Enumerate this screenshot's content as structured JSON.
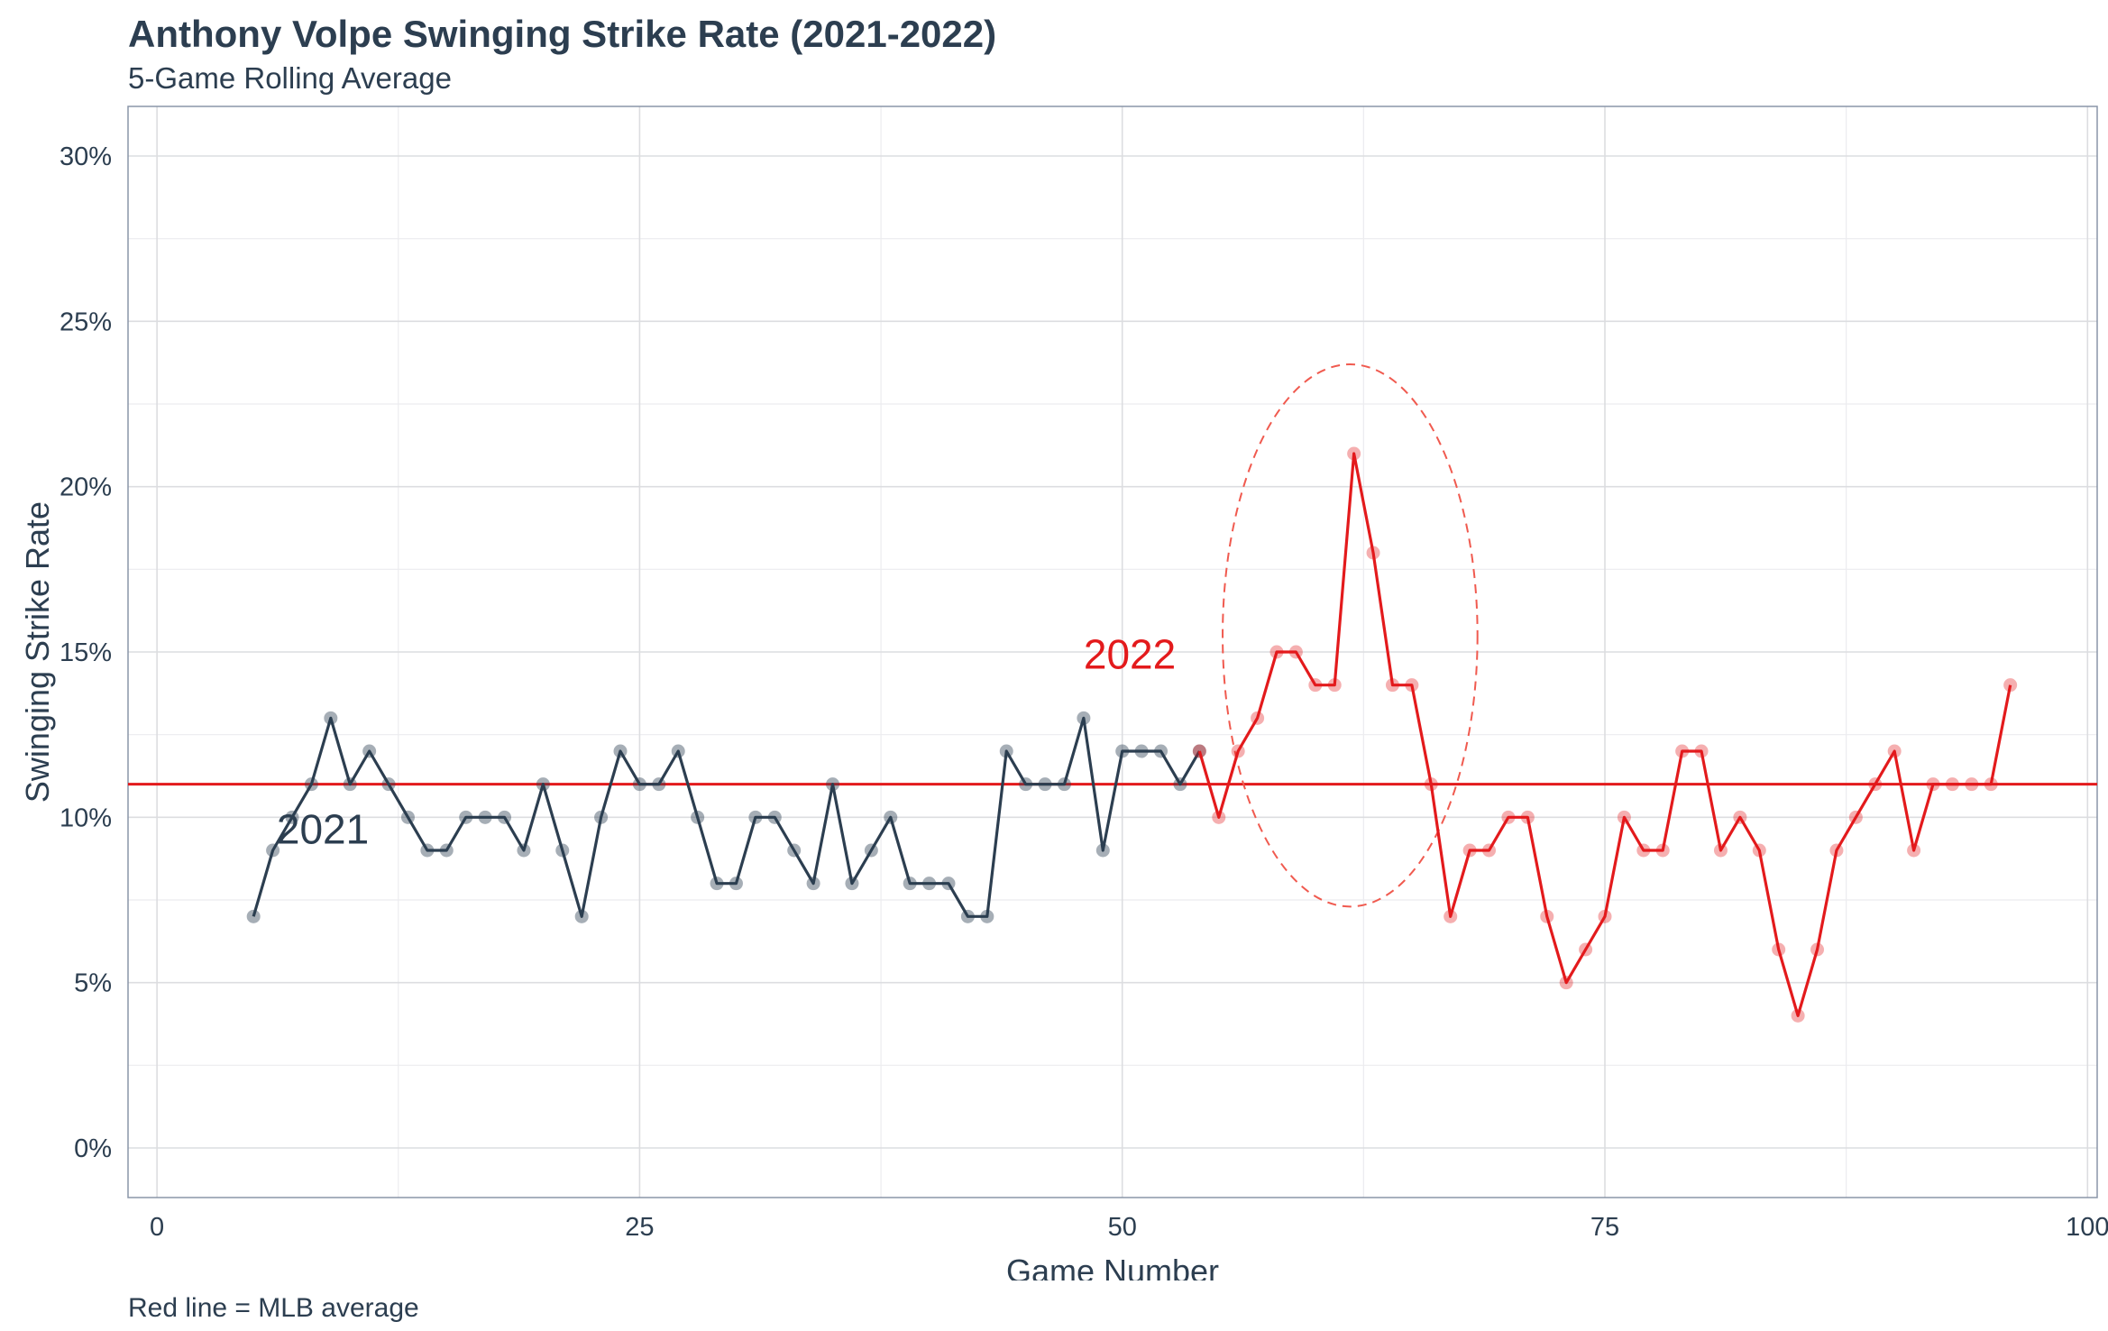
{
  "title": "Anthony Volpe Swinging Strike Rate (2021-2022)",
  "subtitle": "5-Game Rolling Average",
  "caption": "Red line = MLB average",
  "chart_data": {
    "type": "line",
    "xlabel": "Game Number",
    "ylabel": "Swinging Strike Rate",
    "xlim": [
      -1.5,
      100.5
    ],
    "ylim": [
      -1.5,
      31.5
    ],
    "x_ticks": [
      {
        "value": 0,
        "label": "0"
      },
      {
        "value": 25,
        "label": "25"
      },
      {
        "value": 50,
        "label": "50"
      },
      {
        "value": 75,
        "label": "75"
      },
      {
        "value": 100,
        "label": "100"
      }
    ],
    "y_ticks": [
      {
        "value": 0,
        "label": "0%"
      },
      {
        "value": 5,
        "label": "5%"
      },
      {
        "value": 10,
        "label": "10%"
      },
      {
        "value": 15,
        "label": "15%"
      },
      {
        "value": 20,
        "label": "20%"
      },
      {
        "value": 25,
        "label": "25%"
      },
      {
        "value": 30,
        "label": "30%"
      }
    ],
    "grid": true,
    "reference_line": {
      "y": 11,
      "color": "#e31a1c"
    },
    "series": [
      {
        "name": "2021",
        "color": "#2c3e50",
        "x": [
          5,
          6,
          7,
          8,
          9,
          10,
          11,
          12,
          13,
          14,
          15,
          16,
          17,
          18,
          19,
          20,
          21,
          22,
          23,
          24,
          25,
          26,
          27,
          28,
          29,
          30,
          31,
          32,
          33,
          34,
          35,
          36,
          37,
          38,
          39,
          40,
          41,
          42,
          43,
          44,
          45,
          46,
          47,
          48,
          49,
          50,
          51,
          52,
          53,
          54
        ],
        "y": [
          7,
          9,
          10,
          11,
          13,
          11,
          12,
          11,
          10,
          9,
          9,
          10,
          10,
          10,
          9,
          11,
          9,
          7,
          10,
          12,
          11,
          11,
          12,
          10,
          8,
          8,
          10,
          10,
          9,
          8,
          11,
          8,
          9,
          10,
          8,
          8,
          8,
          7,
          7,
          12,
          11,
          11,
          11,
          13,
          9,
          12,
          12,
          12,
          11,
          12
        ]
      },
      {
        "name": "2022",
        "color": "#e31a1c",
        "x": [
          54,
          55,
          56,
          57,
          58,
          59,
          60,
          61,
          62,
          63,
          64,
          65,
          66,
          67,
          68,
          69,
          70,
          71,
          72,
          73,
          74,
          75,
          76,
          77,
          78,
          79,
          80,
          81,
          82,
          83,
          84,
          85,
          86,
          87,
          88,
          89,
          90,
          91,
          92,
          93,
          94,
          95,
          96
        ],
        "y": [
          12,
          10,
          12,
          13,
          15,
          15,
          14,
          14,
          21,
          18,
          14,
          14,
          11,
          7,
          9,
          9,
          10,
          10,
          7,
          5,
          6,
          7,
          10,
          9,
          9,
          12,
          12,
          9,
          10,
          9,
          6,
          4,
          6,
          9,
          10,
          11,
          12,
          9,
          11,
          11,
          11,
          11,
          14
        ]
      }
    ],
    "annotations": [
      {
        "text": "2021",
        "x": 6.2,
        "y": 9.2,
        "color": "#2c3e50"
      },
      {
        "text": "2022",
        "x": 48.0,
        "y": 14.5,
        "color": "#e31a1c"
      }
    ],
    "highlight_ellipse": {
      "cx": 61.8,
      "cy": 15.5,
      "rx": 6.6,
      "ry": 8.2,
      "color": "#f05a4f"
    }
  }
}
